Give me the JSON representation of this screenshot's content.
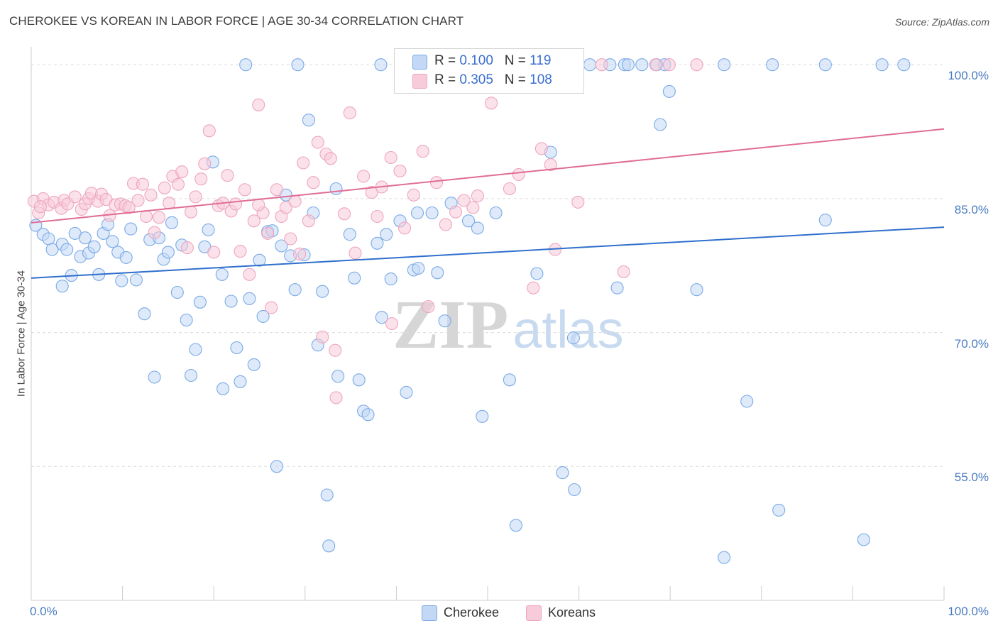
{
  "header": {
    "title": "CHEROKEE VS KOREAN IN LABOR FORCE | AGE 30-34 CORRELATION CHART",
    "source": "Source: ZipAtlas.com"
  },
  "legend_stats": [
    {
      "r_label": "R =",
      "r_value": "0.100",
      "n_label": "N =",
      "n_value": "119"
    },
    {
      "r_label": "R =",
      "r_value": "0.305",
      "n_label": "N =",
      "n_value": "108"
    }
  ],
  "watermark": {
    "zip": "ZIP",
    "atlas": "atlas"
  },
  "chart_data": {
    "type": "scatter",
    "ylabel": "In Labor Force | Age 30-34",
    "xlim": [
      0,
      100
    ],
    "ylim": [
      40,
      102
    ],
    "y_ticks": [
      {
        "value": 100,
        "label": "100.0%"
      },
      {
        "value": 85,
        "label": "85.0%"
      },
      {
        "value": 70,
        "label": "70.0%"
      },
      {
        "value": 55,
        "label": "55.0%"
      }
    ],
    "x_tick_labels": [
      {
        "value": 0,
        "label": "0.0%"
      },
      {
        "value": 100,
        "label": "100.0%"
      }
    ],
    "series": [
      {
        "name": "Cherokee",
        "color": "#7aaae6",
        "fill": "#c2d8f5",
        "trend_color": "#2f6fcc",
        "trend": [
          [
            0,
            76.1
          ],
          [
            100,
            81.8
          ]
        ],
        "points": [
          [
            0.5,
            82
          ],
          [
            1.3,
            81
          ],
          [
            1.9,
            80.5
          ],
          [
            2.3,
            79.3
          ],
          [
            3.4,
            79.9
          ],
          [
            3.9,
            79.3
          ],
          [
            3.4,
            75.2
          ],
          [
            4.4,
            76.4
          ],
          [
            4.8,
            81.1
          ],
          [
            5.4,
            78.5
          ],
          [
            5.9,
            80.6
          ],
          [
            6.3,
            78.9
          ],
          [
            6.9,
            79.6
          ],
          [
            7.4,
            76.5
          ],
          [
            7.9,
            81.1
          ],
          [
            8.4,
            82.1
          ],
          [
            8.9,
            80.2
          ],
          [
            9.5,
            79
          ],
          [
            9.9,
            75.8
          ],
          [
            10.4,
            78.4
          ],
          [
            10.9,
            81.6
          ],
          [
            11.5,
            75.9
          ],
          [
            12.4,
            72.1
          ],
          [
            13,
            80.4
          ],
          [
            13.5,
            65
          ],
          [
            14,
            80.6
          ],
          [
            14.5,
            78.2
          ],
          [
            15,
            79
          ],
          [
            15.4,
            82.3
          ],
          [
            16,
            74.5
          ],
          [
            16.5,
            79.8
          ],
          [
            17,
            71.4
          ],
          [
            17.5,
            65.2
          ],
          [
            18,
            68.1
          ],
          [
            18.5,
            73.4
          ],
          [
            19,
            79.6
          ],
          [
            19.4,
            81.5
          ],
          [
            19.9,
            89.1
          ],
          [
            20.9,
            76.5
          ],
          [
            21,
            63.7
          ],
          [
            21.9,
            73.5
          ],
          [
            22.5,
            68.3
          ],
          [
            22.9,
            64.5
          ],
          [
            23.5,
            100
          ],
          [
            23.9,
            73.8
          ],
          [
            24.4,
            66.4
          ],
          [
            25,
            78.1
          ],
          [
            25.4,
            71.8
          ],
          [
            25.9,
            81.3
          ],
          [
            26.4,
            81.4
          ],
          [
            26.9,
            55
          ],
          [
            27.4,
            79.7
          ],
          [
            27.9,
            85.4
          ],
          [
            28.4,
            78.6
          ],
          [
            28.9,
            74.8
          ],
          [
            29.2,
            100
          ],
          [
            29.9,
            78.7
          ],
          [
            30.4,
            93.8
          ],
          [
            30.9,
            83.4
          ],
          [
            31.4,
            68.6
          ],
          [
            31.9,
            74.6
          ],
          [
            32.4,
            51.8
          ],
          [
            32.6,
            46.1
          ],
          [
            33.4,
            86.1
          ],
          [
            33.6,
            65.1
          ],
          [
            34.9,
            81
          ],
          [
            35.4,
            76.1
          ],
          [
            35.9,
            64.7
          ],
          [
            36.4,
            61.2
          ],
          [
            36.9,
            60.8
          ],
          [
            37.9,
            80
          ],
          [
            38.4,
            71.7
          ],
          [
            38.9,
            81
          ],
          [
            39.4,
            76
          ],
          [
            40.4,
            82.5
          ],
          [
            41.1,
            63.3
          ],
          [
            41.9,
            77
          ],
          [
            42.3,
            83.4
          ],
          [
            42.4,
            77.2
          ],
          [
            43.9,
            83.4
          ],
          [
            44.5,
            76.7
          ],
          [
            45.3,
            71.3
          ],
          [
            46,
            84.5
          ],
          [
            47.9,
            82.5
          ],
          [
            48.9,
            81.7
          ],
          [
            49.4,
            60.6
          ],
          [
            50.9,
            83.4
          ],
          [
            52.4,
            64.7
          ],
          [
            53.1,
            48.4
          ],
          [
            55.4,
            76.6
          ],
          [
            56.9,
            90.2
          ],
          [
            58.2,
            54.3
          ],
          [
            59.4,
            69.4
          ],
          [
            59.5,
            52.4
          ],
          [
            61.2,
            100
          ],
          [
            63.4,
            100
          ],
          [
            64.2,
            75
          ],
          [
            65,
            100
          ],
          [
            65.4,
            100
          ],
          [
            66.9,
            100
          ],
          [
            68.5,
            100
          ],
          [
            68.9,
            93.3
          ],
          [
            69.4,
            100
          ],
          [
            69.9,
            97
          ],
          [
            72.9,
            74.8
          ],
          [
            75.9,
            100
          ],
          [
            75.9,
            44.8
          ],
          [
            78.4,
            62.3
          ],
          [
            81.2,
            100
          ],
          [
            81.9,
            50.1
          ],
          [
            87,
            82.6
          ],
          [
            87,
            100
          ],
          [
            91.2,
            46.8
          ],
          [
            93.2,
            100
          ],
          [
            95.6,
            100
          ],
          [
            38.3,
            100
          ],
          [
            50.9,
            100
          ]
        ]
      },
      {
        "name": "Koreans",
        "color": "#eea5be",
        "fill": "#f7cbd9",
        "trend_color": "#e06c95",
        "trend": [
          [
            0,
            82.3
          ],
          [
            100,
            92.8
          ]
        ],
        "points": [
          [
            0.3,
            84.7
          ],
          [
            0.8,
            83.4
          ],
          [
            1.3,
            85
          ],
          [
            1.9,
            84.3
          ],
          [
            2.5,
            84.6
          ],
          [
            3.3,
            83.9
          ],
          [
            3.6,
            84.8
          ],
          [
            4,
            84.4
          ],
          [
            4.8,
            85.2
          ],
          [
            5.5,
            83.8
          ],
          [
            5.9,
            84.4
          ],
          [
            6.3,
            85
          ],
          [
            6.6,
            85.6
          ],
          [
            7.3,
            84.7
          ],
          [
            7.7,
            85.5
          ],
          [
            8.2,
            84.9
          ],
          [
            8.6,
            83.1
          ],
          [
            9.2,
            84.3
          ],
          [
            9.8,
            84.4
          ],
          [
            10.3,
            84.2
          ],
          [
            10.7,
            84
          ],
          [
            11.2,
            86.7
          ],
          [
            11.7,
            84.8
          ],
          [
            12.2,
            86.6
          ],
          [
            12.6,
            83
          ],
          [
            13.1,
            85.4
          ],
          [
            13.5,
            81.2
          ],
          [
            14,
            82.9
          ],
          [
            14.6,
            86.2
          ],
          [
            15.1,
            84.5
          ],
          [
            15.5,
            87.5
          ],
          [
            16.1,
            86.6
          ],
          [
            16.5,
            88
          ],
          [
            17.1,
            79.5
          ],
          [
            17.5,
            83.5
          ],
          [
            18,
            85.2
          ],
          [
            18.6,
            87.2
          ],
          [
            19,
            88.9
          ],
          [
            19.5,
            92.6
          ],
          [
            20,
            79
          ],
          [
            20.5,
            84.2
          ],
          [
            21,
            84.5
          ],
          [
            21.5,
            87.6
          ],
          [
            21.9,
            83.6
          ],
          [
            22.4,
            84.4
          ],
          [
            22.9,
            79.1
          ],
          [
            23.4,
            86
          ],
          [
            23.9,
            76.5
          ],
          [
            24.4,
            82.5
          ],
          [
            24.9,
            95.5
          ],
          [
            25.4,
            83.4
          ],
          [
            25.9,
            81.1
          ],
          [
            26.3,
            72.8
          ],
          [
            26.9,
            86
          ],
          [
            27.4,
            83
          ],
          [
            27.9,
            84
          ],
          [
            28.4,
            80.5
          ],
          [
            28.9,
            84.7
          ],
          [
            29.4,
            78.8
          ],
          [
            29.8,
            89
          ],
          [
            30.4,
            82.5
          ],
          [
            30.9,
            86.8
          ],
          [
            31.4,
            91.3
          ],
          [
            31.9,
            69.5
          ],
          [
            32.3,
            90
          ],
          [
            32.8,
            89.5
          ],
          [
            33.3,
            68
          ],
          [
            33.4,
            62.7
          ],
          [
            34.3,
            83.3
          ],
          [
            34.9,
            94.6
          ],
          [
            35.5,
            78.9
          ],
          [
            36.4,
            87.5
          ],
          [
            37.3,
            85.7
          ],
          [
            37.9,
            83
          ],
          [
            38.4,
            86.3
          ],
          [
            39.4,
            89.6
          ],
          [
            39.5,
            71
          ],
          [
            40.4,
            88.1
          ],
          [
            40.9,
            81.7
          ],
          [
            41.9,
            85.4
          ],
          [
            42.9,
            90.3
          ],
          [
            43.5,
            72.9
          ],
          [
            44.4,
            86.8
          ],
          [
            45.4,
            82.1
          ],
          [
            46.5,
            83.5
          ],
          [
            47.4,
            84.8
          ],
          [
            48.4,
            84
          ],
          [
            49,
            98.1
          ],
          [
            50.4,
            95.7
          ],
          [
            52.4,
            86.1
          ],
          [
            53.4,
            87.7
          ],
          [
            55,
            75
          ],
          [
            55.9,
            90.6
          ],
          [
            56.9,
            88.8
          ],
          [
            57.4,
            79.3
          ],
          [
            57.9,
            100
          ],
          [
            59.9,
            84.6
          ],
          [
            62.5,
            100
          ],
          [
            64.9,
            76.8
          ],
          [
            68.4,
            100
          ],
          [
            69.9,
            100
          ],
          [
            72.9,
            100
          ],
          [
            48.9,
            85.3
          ],
          [
            1.0,
            84.1
          ],
          [
            24.9,
            84.3
          ],
          [
            56.4,
            100
          ]
        ]
      }
    ]
  }
}
